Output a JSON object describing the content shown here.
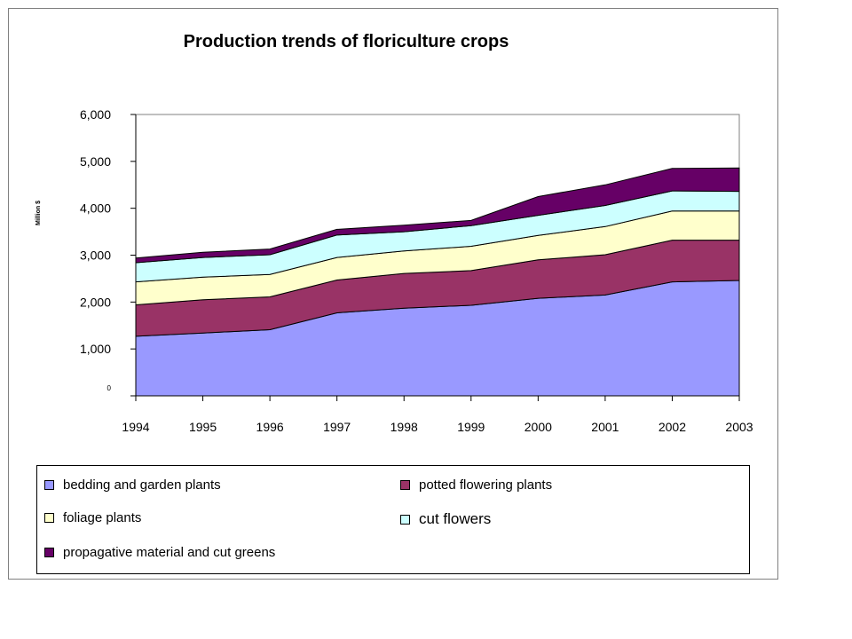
{
  "chart_data": {
    "type": "area",
    "stacked": true,
    "title": "Production trends of floriculture crops",
    "ylabel": "Million $",
    "xlabel": "",
    "ylim": [
      0,
      6000
    ],
    "yticks": [
      "0",
      "1,000",
      "2,000",
      "3,000",
      "4,000",
      "5,000",
      "6,000"
    ],
    "x": [
      "1994",
      "1995",
      "1996",
      "1997",
      "1998",
      "1999",
      "2000",
      "2001",
      "2002",
      "2003"
    ],
    "grid": false,
    "legend_position": "bottom",
    "series": [
      {
        "name": "bedding and garden plants",
        "color": "#9999ff",
        "values": [
          1270,
          1340,
          1410,
          1770,
          1870,
          1930,
          2080,
          2150,
          2430,
          2460
        ]
      },
      {
        "name": "potted flowering plants",
        "color": "#993366",
        "values": [
          670,
          710,
          700,
          700,
          740,
          740,
          820,
          860,
          890,
          860
        ]
      },
      {
        "name": "foliage plants",
        "color": "#ffffcc",
        "values": [
          490,
          480,
          480,
          480,
          480,
          520,
          520,
          600,
          620,
          620
        ]
      },
      {
        "name": "cut flowers",
        "color": "#ccffff",
        "values": [
          410,
          420,
          420,
          480,
          410,
          440,
          430,
          450,
          430,
          420
        ]
      },
      {
        "name": "propagative material and cut greens",
        "color": "#660066",
        "values": [
          100,
          110,
          120,
          120,
          140,
          110,
          400,
          440,
          480,
          500
        ]
      }
    ]
  }
}
